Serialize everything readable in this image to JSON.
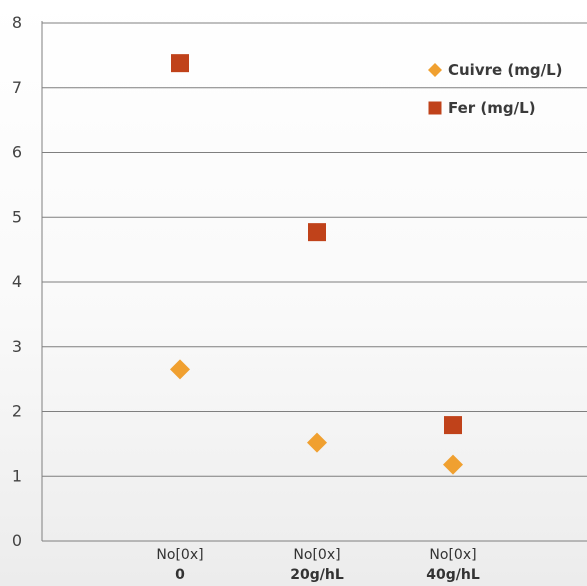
{
  "chart_data": {
    "type": "scatter",
    "categories": [
      {
        "line1": "No[0x]",
        "line2": "0"
      },
      {
        "line1": "No[0x]",
        "line2": "20g/hL"
      },
      {
        "line1": "No[0x]",
        "line2": "40g/hL"
      }
    ],
    "series": [
      {
        "name": "Cuivre (mg/L)",
        "marker": "diamond",
        "color": "#f0a030",
        "values": [
          2.65,
          1.52,
          1.18
        ]
      },
      {
        "name": "Fer (mg/L)",
        "marker": "square",
        "color": "#c0421a",
        "values": [
          7.38,
          4.77,
          1.79
        ]
      }
    ],
    "ylim": [
      0,
      8
    ],
    "yticks": [
      0,
      1,
      2,
      3,
      4,
      5,
      6,
      7,
      8
    ],
    "grid": true,
    "legend_position": "top-right",
    "title": "",
    "xlabel": "",
    "ylabel": ""
  }
}
